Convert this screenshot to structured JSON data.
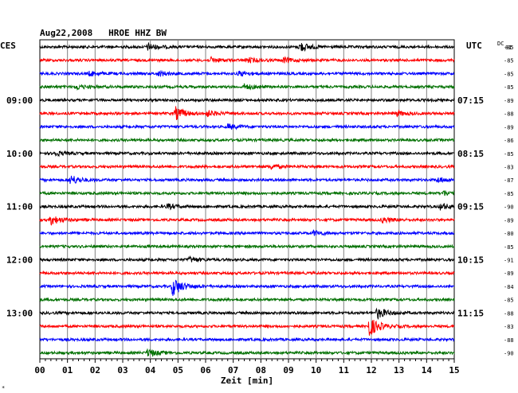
{
  "chart_data": {
    "type": "line",
    "title": "Aug22,2008   HROE HHZ BW",
    "left_timezone": "CES",
    "right_timezone": "UTC",
    "dc_header": "DC",
    "dc_header_sub": "81",
    "xlabel": "Zeit [min]",
    "xlim": [
      0,
      15
    ],
    "x_ticks": [
      "00",
      "01",
      "02",
      "03",
      "04",
      "05",
      "06",
      "07",
      "08",
      "09",
      "10",
      "11",
      "12",
      "13",
      "14",
      "15"
    ],
    "line_colors": [
      "#000000",
      "#ff0000",
      "#0000ff",
      "#007000"
    ],
    "left_time_labels": [
      {
        "row": 4,
        "label": "09:00"
      },
      {
        "row": 8,
        "label": "10:00"
      },
      {
        "row": 12,
        "label": "11:00"
      },
      {
        "row": 16,
        "label": "12:00"
      },
      {
        "row": 20,
        "label": "13:00"
      }
    ],
    "right_time_labels": [
      {
        "row": 4,
        "label": "07:15"
      },
      {
        "row": 8,
        "label": "08:15"
      },
      {
        "row": 12,
        "label": "09:15"
      },
      {
        "row": 16,
        "label": "10:15"
      },
      {
        "row": 20,
        "label": "11:15"
      }
    ],
    "dc_values": [
      "-85",
      "-85",
      "-85",
      "-85",
      "-89",
      "-88",
      "-89",
      "-86",
      "-85",
      "-83",
      "-87",
      "-85",
      "-90",
      "-89",
      "-80",
      "-85",
      "-91",
      "-89",
      "-84",
      "-85",
      "-88",
      "-83",
      "-88",
      "-90"
    ],
    "traces": [
      {
        "row": 0,
        "color": "#000000",
        "events": [
          {
            "t": 3.9,
            "amp": 4
          },
          {
            "t": 9.4,
            "amp": 6
          }
        ]
      },
      {
        "row": 1,
        "color": "#ff0000",
        "events": [
          {
            "t": 6.2,
            "amp": 3
          },
          {
            "t": 7.5,
            "amp": 3
          },
          {
            "t": 8.8,
            "amp": 3
          }
        ]
      },
      {
        "row": 2,
        "color": "#0000ff",
        "events": [
          {
            "t": 1.8,
            "amp": 3
          },
          {
            "t": 4.3,
            "amp": 3
          },
          {
            "t": 7.2,
            "amp": 3
          }
        ]
      },
      {
        "row": 3,
        "color": "#007000",
        "events": [
          {
            "t": 1.3,
            "amp": 3
          },
          {
            "t": 7.4,
            "amp": 3
          }
        ]
      },
      {
        "row": 4,
        "color": "#000000",
        "events": []
      },
      {
        "row": 5,
        "color": "#ff0000",
        "events": [
          {
            "t": 4.9,
            "amp": 8
          },
          {
            "t": 6.0,
            "amp": 4
          },
          {
            "t": 12.9,
            "amp": 3
          }
        ]
      },
      {
        "row": 6,
        "color": "#0000ff",
        "events": [
          {
            "t": 6.8,
            "amp": 3
          }
        ]
      },
      {
        "row": 7,
        "color": "#007000",
        "events": []
      },
      {
        "row": 8,
        "color": "#000000",
        "events": [
          {
            "t": 0.5,
            "amp": 3
          }
        ]
      },
      {
        "row": 9,
        "color": "#ff0000",
        "events": [
          {
            "t": 8.3,
            "amp": 3
          }
        ]
      },
      {
        "row": 10,
        "color": "#0000ff",
        "events": [
          {
            "t": 1.1,
            "amp": 6
          },
          {
            "t": 14.4,
            "amp": 3
          }
        ]
      },
      {
        "row": 11,
        "color": "#007000",
        "events": [
          {
            "t": 14.6,
            "amp": 3
          }
        ]
      },
      {
        "row": 12,
        "color": "#000000",
        "events": [
          {
            "t": 4.6,
            "amp": 3
          },
          {
            "t": 14.5,
            "amp": 4
          }
        ]
      },
      {
        "row": 13,
        "color": "#ff0000",
        "events": [
          {
            "t": 0.4,
            "amp": 6
          },
          {
            "t": 12.4,
            "amp": 3
          }
        ]
      },
      {
        "row": 14,
        "color": "#0000ff",
        "events": [
          {
            "t": 9.9,
            "amp": 3
          }
        ]
      },
      {
        "row": 15,
        "color": "#007000",
        "events": []
      },
      {
        "row": 16,
        "color": "#000000",
        "events": [
          {
            "t": 5.4,
            "amp": 3
          }
        ]
      },
      {
        "row": 17,
        "color": "#ff0000",
        "events": []
      },
      {
        "row": 18,
        "color": "#0000ff",
        "events": [
          {
            "t": 4.8,
            "amp": 12
          }
        ]
      },
      {
        "row": 19,
        "color": "#007000",
        "events": []
      },
      {
        "row": 20,
        "color": "#000000",
        "events": [
          {
            "t": 12.2,
            "amp": 7
          }
        ]
      },
      {
        "row": 21,
        "color": "#ff0000",
        "events": [
          {
            "t": 11.9,
            "amp": 13
          }
        ]
      },
      {
        "row": 22,
        "color": "#0000ff",
        "events": []
      },
      {
        "row": 23,
        "color": "#007000",
        "events": [
          {
            "t": 3.9,
            "amp": 5
          }
        ]
      }
    ]
  }
}
